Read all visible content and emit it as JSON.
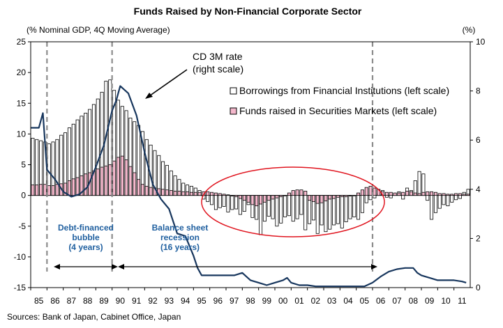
{
  "chart_data": {
    "type": "bar",
    "title": "Funds Raised by Non-Financial Corporate Sector",
    "ylabel_left": "(% Nominal GDP, 4Q Moving Average)",
    "ylabel_right": "(%)",
    "source": "Sources: Bank of Japan, Cabinet Office, Japan",
    "left_axis": {
      "min": -15,
      "max": 25,
      "ticks": [
        "25",
        "20",
        "15",
        "10",
        "5",
        "0",
        "-5",
        "-10",
        "-15"
      ]
    },
    "right_axis": {
      "min": 0,
      "max": 10,
      "ticks": [
        "10",
        "8",
        "6",
        "4",
        "2",
        "0"
      ]
    },
    "x_range": [
      1985.0,
      2012.0
    ],
    "x_labels": [
      "85",
      "86",
      "87",
      "88",
      "89",
      "90",
      "91",
      "92",
      "93",
      "94",
      "95",
      "96",
      "97",
      "98",
      "99",
      "00",
      "01",
      "02",
      "03",
      "04",
      "05",
      "06",
      "07",
      "08",
      "09",
      "10",
      "11"
    ],
    "legend": {
      "borrow": "Borrowings from Financial Institutions (left scale)",
      "securities": "Funds raised in Securities Markets (left scale)"
    },
    "colors": {
      "borrow": "#ffffff",
      "securities": "#f4b8cc",
      "rate": "#17365d",
      "ellipse": "#e0141e",
      "annotation_text": "#1f5f9f"
    },
    "annotations": {
      "cd_rate_line1": "CD 3M rate",
      "cd_rate_line2": "(right scale)",
      "bubble_line1": "Debt-financed",
      "bubble_line2": "bubble",
      "bubble_line3": "(4 years)",
      "recession_line1": "Balance sheet",
      "recession_line2": "recession",
      "recession_line3": "(16 years)"
    },
    "markers_x": [
      1986.0,
      1990.0,
      2006.0
    ],
    "series": [
      {
        "key": "borrow",
        "name": "Borrowings from Financial Institutions (left scale)",
        "kind": "bar",
        "x": [
          1985.0,
          1985.25,
          1985.5,
          1985.75,
          1986.0,
          1986.25,
          1986.5,
          1986.75,
          1987.0,
          1987.25,
          1987.5,
          1987.75,
          1988.0,
          1988.25,
          1988.5,
          1988.75,
          1989.0,
          1989.25,
          1989.5,
          1989.75,
          1990.0,
          1990.25,
          1990.5,
          1990.75,
          1991.0,
          1991.25,
          1991.5,
          1991.75,
          1992.0,
          1992.25,
          1992.5,
          1992.75,
          1993.0,
          1993.25,
          1993.5,
          1993.75,
          1994.0,
          1994.25,
          1994.5,
          1994.75,
          1995.0,
          1995.25,
          1995.5,
          1995.75,
          1996.0,
          1996.25,
          1996.5,
          1996.75,
          1997.0,
          1997.25,
          1997.5,
          1997.75,
          1998.0,
          1998.25,
          1998.5,
          1998.75,
          1999.0,
          1999.25,
          1999.5,
          1999.75,
          2000.0,
          2000.25,
          2000.5,
          2000.75,
          2001.0,
          2001.25,
          2001.5,
          2001.75,
          2002.0,
          2002.25,
          2002.5,
          2002.75,
          2003.0,
          2003.25,
          2003.5,
          2003.75,
          2004.0,
          2004.25,
          2004.5,
          2004.75,
          2005.0,
          2005.25,
          2005.5,
          2005.75,
          2006.0,
          2006.25,
          2006.5,
          2006.75,
          2007.0,
          2007.25,
          2007.5,
          2007.75,
          2008.0,
          2008.25,
          2008.5,
          2008.75,
          2009.0,
          2009.25,
          2009.5,
          2009.75,
          2010.0,
          2010.25,
          2010.5,
          2010.75,
          2011.0,
          2011.25,
          2011.5,
          2011.75
        ],
        "values": [
          9.3,
          9.1,
          8.9,
          8.7,
          8.4,
          8.7,
          9.1,
          9.8,
          10.2,
          11.0,
          11.6,
          12.3,
          12.9,
          13.4,
          14.0,
          14.8,
          15.7,
          16.8,
          18.6,
          18.8,
          17.1,
          15.5,
          14.5,
          13.8,
          12.6,
          12.0,
          11.4,
          10.4,
          9.1,
          8.2,
          7.3,
          6.5,
          5.5,
          4.9,
          4.0,
          3.2,
          2.6,
          2.0,
          1.7,
          1.5,
          1.2,
          0.8,
          -0.6,
          -1.0,
          -1.5,
          -2.3,
          -2.0,
          -1.8,
          -2.7,
          -2.3,
          -2.2,
          -3.1,
          -2.6,
          -1.5,
          -3.6,
          -3.9,
          -6.4,
          -4.2,
          -3.4,
          -3.8,
          -5.0,
          -4.5,
          -3.5,
          -3.3,
          -4.2,
          -3.8,
          -3.1,
          -5.6,
          -4.6,
          -4.0,
          -6.2,
          -4.8,
          -5.9,
          -5.5,
          -4.8,
          -4.6,
          -5.3,
          -4.3,
          -3.8,
          -3.5,
          -3.9,
          -2.8,
          -1.2,
          -0.7,
          -0.4,
          0.3,
          0.8,
          -0.3,
          -0.4,
          0.3,
          0.6,
          -0.6,
          1.2,
          0.8,
          2.4,
          3.9,
          3.5,
          -0.8,
          -3.9,
          -2.8,
          -2.1,
          -1.5,
          -1.7,
          -1.1,
          -0.7,
          -0.5,
          0.5,
          1.0
        ]
      },
      {
        "key": "securities",
        "name": "Funds raised in Securities Markets (left scale)",
        "kind": "bar",
        "x": [
          1985.0,
          1985.25,
          1985.5,
          1985.75,
          1986.0,
          1986.25,
          1986.5,
          1986.75,
          1987.0,
          1987.25,
          1987.5,
          1987.75,
          1988.0,
          1988.25,
          1988.5,
          1988.75,
          1989.0,
          1989.25,
          1989.5,
          1989.75,
          1990.0,
          1990.25,
          1990.5,
          1990.75,
          1991.0,
          1991.25,
          1991.5,
          1991.75,
          1992.0,
          1992.25,
          1992.5,
          1992.75,
          1993.0,
          1993.25,
          1993.5,
          1993.75,
          1994.0,
          1994.25,
          1994.5,
          1994.75,
          1995.0,
          1995.25,
          1995.5,
          1995.75,
          1996.0,
          1996.25,
          1996.5,
          1996.75,
          1997.0,
          1997.25,
          1997.5,
          1997.75,
          1998.0,
          1998.25,
          1998.5,
          1998.75,
          1999.0,
          1999.25,
          1999.5,
          1999.75,
          2000.0,
          2000.25,
          2000.5,
          2000.75,
          2001.0,
          2001.25,
          2001.5,
          2001.75,
          2002.0,
          2002.25,
          2002.5,
          2002.75,
          2003.0,
          2003.25,
          2003.5,
          2003.75,
          2004.0,
          2004.25,
          2004.5,
          2004.75,
          2005.0,
          2005.25,
          2005.5,
          2005.75,
          2006.0,
          2006.25,
          2006.5,
          2006.75,
          2007.0,
          2007.25,
          2007.5,
          2007.75,
          2008.0,
          2008.25,
          2008.5,
          2008.75,
          2009.0,
          2009.25,
          2009.5,
          2009.75,
          2010.0,
          2010.25,
          2010.5,
          2010.75,
          2011.0,
          2011.25,
          2011.5,
          2011.75
        ],
        "values": [
          1.7,
          1.7,
          1.8,
          1.8,
          1.6,
          1.6,
          1.8,
          1.9,
          2.0,
          2.4,
          2.7,
          2.9,
          3.2,
          3.5,
          3.7,
          4.0,
          4.3,
          4.6,
          4.8,
          5.0,
          5.6,
          6.2,
          6.4,
          5.8,
          4.7,
          3.7,
          2.6,
          1.8,
          1.5,
          1.3,
          1.2,
          1.1,
          1.0,
          0.9,
          0.8,
          0.7,
          0.7,
          0.6,
          0.6,
          0.5,
          0.5,
          0.5,
          0.6,
          0.6,
          0.5,
          0.4,
          0.3,
          0.2,
          0.1,
          -0.1,
          -0.2,
          -0.5,
          -0.8,
          -1.1,
          -1.5,
          -1.7,
          -1.4,
          -1.1,
          -0.8,
          -0.6,
          -0.4,
          -0.2,
          0.0,
          0.4,
          0.8,
          0.9,
          0.9,
          0.7,
          -0.8,
          -1.0,
          -1.3,
          -1.2,
          -0.9,
          -0.6,
          -0.5,
          -0.3,
          -0.2,
          -0.2,
          -0.1,
          0.0,
          0.4,
          0.9,
          1.3,
          1.5,
          1.2,
          1.0,
          0.6,
          0.5,
          0.5,
          0.4,
          0.4,
          0.5,
          0.7,
          0.6,
          0.4,
          0.3,
          0.5,
          0.6,
          0.6,
          0.5,
          0.3,
          0.3,
          0.2,
          0.2,
          0.3,
          0.3,
          0.2,
          0.2
        ]
      },
      {
        "key": "rate",
        "name": "CD 3M rate",
        "kind": "line",
        "x": [
          1985.0,
          1985.5,
          1985.75,
          1986.0,
          1986.5,
          1987.0,
          1987.5,
          1988.0,
          1988.5,
          1989.0,
          1989.5,
          1990.0,
          1990.25,
          1990.5,
          1991.0,
          1991.5,
          1992.0,
          1992.5,
          1993.0,
          1993.5,
          1994.0,
          1994.5,
          1995.0,
          1995.25,
          1995.5,
          1996.0,
          1996.5,
          1997.0,
          1997.5,
          1998.0,
          1998.5,
          1999.0,
          1999.5,
          2000.0,
          2000.5,
          2000.75,
          2001.0,
          2001.5,
          2002.0,
          2002.5,
          2003.0,
          2003.5,
          2004.0,
          2004.5,
          2005.0,
          2005.5,
          2006.0,
          2006.5,
          2007.0,
          2007.5,
          2008.0,
          2008.5,
          2008.75,
          2009.0,
          2009.5,
          2010.0,
          2010.5,
          2011.0,
          2011.5,
          2011.75
        ],
        "values": [
          6.5,
          6.5,
          7.1,
          4.8,
          4.4,
          3.9,
          3.7,
          3.8,
          4.1,
          4.9,
          5.8,
          7.2,
          7.6,
          8.2,
          7.9,
          7.0,
          5.5,
          4.2,
          3.6,
          3.2,
          2.2,
          2.1,
          1.3,
          0.8,
          0.5,
          0.5,
          0.5,
          0.5,
          0.5,
          0.6,
          0.3,
          0.2,
          0.1,
          0.2,
          0.3,
          0.4,
          0.2,
          0.1,
          0.1,
          0.05,
          0.05,
          0.05,
          0.05,
          0.05,
          0.05,
          0.05,
          0.2,
          0.45,
          0.65,
          0.75,
          0.8,
          0.8,
          0.6,
          0.5,
          0.4,
          0.3,
          0.3,
          0.3,
          0.25,
          0.2
        ]
      }
    ]
  }
}
